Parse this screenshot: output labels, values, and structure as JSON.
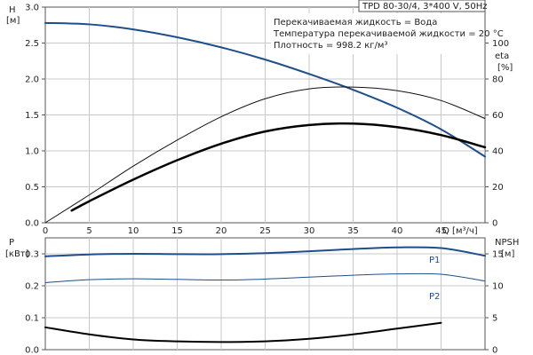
{
  "header": {
    "model": "TPD 80-30/4, 3*400 V, 50Hz",
    "notes": [
      "Перекачиваемая жидкость = Вода",
      "Температура перекачиваемой жидкости = 20 °C",
      "Плотность = 998.2 кг/м³"
    ]
  },
  "chart_data": [
    {
      "type": "line",
      "name": "performance",
      "xlabel": "Q [м³/ч]",
      "xlim": [
        0,
        50
      ],
      "x_ticks": [
        0,
        5,
        10,
        15,
        20,
        25,
        30,
        35,
        40,
        45
      ],
      "y_left": {
        "label_lines": [
          "H",
          "[м]"
        ],
        "lim": [
          0,
          3.0
        ],
        "ticks": [
          0.0,
          0.5,
          1.0,
          1.5,
          2.0,
          2.5,
          3.0
        ]
      },
      "y_right": {
        "label_lines": [
          "eta",
          "[%]"
        ],
        "lim": [
          0,
          120
        ],
        "ticks": [
          0,
          20,
          40,
          60,
          80,
          100
        ]
      },
      "grid": true,
      "series": [
        {
          "role": "H",
          "axis": "left",
          "color": "#1f4e8c",
          "width": 2,
          "x": [
            0,
            5,
            10,
            15,
            20,
            25,
            30,
            35,
            40,
            45,
            50
          ],
          "y": [
            2.78,
            2.76,
            2.69,
            2.58,
            2.44,
            2.27,
            2.07,
            1.85,
            1.6,
            1.3,
            0.92
          ]
        },
        {
          "role": "eta",
          "axis": "right",
          "color": "#111111",
          "width": 1,
          "x": [
            0,
            5,
            10,
            15,
            20,
            25,
            30,
            35,
            40,
            45,
            50
          ],
          "y": [
            0,
            15.5,
            31.5,
            46,
            59,
            69,
            74.5,
            75.5,
            73.5,
            68,
            58
          ]
        },
        {
          "role": "eta-thick",
          "axis": "left",
          "color": "#000000",
          "width": 2.5,
          "x": [
            3,
            5,
            10,
            15,
            20,
            25,
            30,
            35,
            40,
            45,
            50
          ],
          "y": [
            0.17,
            0.3,
            0.6,
            0.87,
            1.1,
            1.27,
            1.36,
            1.38,
            1.33,
            1.22,
            1.05
          ]
        }
      ]
    },
    {
      "type": "line",
      "name": "power-npsh",
      "xlim": [
        0,
        50
      ],
      "y_left": {
        "label_lines": [
          "P",
          "[кВт]"
        ],
        "lim": [
          0,
          0.35
        ],
        "ticks": [
          0.0,
          0.1,
          0.2,
          0.3
        ]
      },
      "y_right": {
        "label_lines": [
          "NPSH",
          "[м]"
        ],
        "lim": [
          0,
          17.5
        ],
        "ticks": [
          0,
          5,
          10,
          15
        ]
      },
      "grid": true,
      "series": [
        {
          "name": "P1",
          "axis": "left",
          "color": "#1f4e8c",
          "width": 2,
          "x": [
            0,
            5,
            10,
            15,
            20,
            25,
            30,
            35,
            40,
            45,
            50
          ],
          "y": [
            0.292,
            0.298,
            0.3,
            0.299,
            0.299,
            0.302,
            0.308,
            0.315,
            0.32,
            0.318,
            0.294
          ]
        },
        {
          "name": "P2",
          "axis": "left",
          "color": "#1f4e8c",
          "width": 1,
          "x": [
            0,
            5,
            10,
            15,
            20,
            25,
            30,
            35,
            40,
            45,
            50
          ],
          "y": [
            0.21,
            0.219,
            0.222,
            0.22,
            0.218,
            0.221,
            0.227,
            0.233,
            0.237,
            0.236,
            0.215
          ]
        },
        {
          "role": "NPSH",
          "axis": "right",
          "color": "#000000",
          "width": 2,
          "x": [
            0,
            5,
            10,
            15,
            20,
            25,
            30,
            35,
            40,
            45
          ],
          "y": [
            3.5,
            2.4,
            1.6,
            1.3,
            1.2,
            1.3,
            1.7,
            2.4,
            3.3,
            4.2
          ]
        }
      ]
    }
  ]
}
